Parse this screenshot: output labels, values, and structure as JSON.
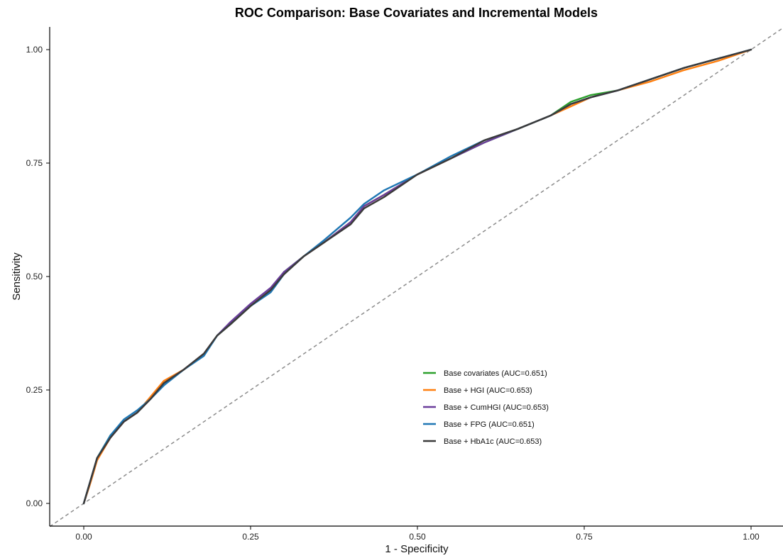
{
  "chart_data": {
    "type": "line",
    "title": "ROC Comparison: Base Covariates and Incremental Models",
    "xlabel": "1 - Specificity",
    "ylabel": "Sensitivity",
    "xlim": [
      0,
      1
    ],
    "ylim": [
      0,
      1
    ],
    "x_ticks": [
      "0.00",
      "0.25",
      "0.50",
      "0.75",
      "1.00"
    ],
    "y_ticks": [
      "0.00",
      "0.25",
      "0.50",
      "0.75",
      "1.00"
    ],
    "grid": false,
    "legend_position": "center-right",
    "reference_line": {
      "style": "dashed",
      "color": "#8c8c8c",
      "x": [
        0,
        1
      ],
      "y": [
        0,
        1
      ]
    },
    "series": [
      {
        "name": "Base covariates (AUC=0.651)",
        "color": "#2ca02c",
        "x": [
          0,
          0.01,
          0.02,
          0.04,
          0.06,
          0.08,
          0.1,
          0.12,
          0.15,
          0.18,
          0.2,
          0.22,
          0.25,
          0.28,
          0.3,
          0.33,
          0.36,
          0.4,
          0.42,
          0.45,
          0.5,
          0.55,
          0.6,
          0.65,
          0.7,
          0.73,
          0.76,
          0.8,
          0.85,
          0.9,
          0.95,
          1.0
        ],
        "y": [
          0,
          0.05,
          0.1,
          0.15,
          0.18,
          0.2,
          0.23,
          0.265,
          0.295,
          0.33,
          0.37,
          0.395,
          0.435,
          0.47,
          0.51,
          0.545,
          0.575,
          0.62,
          0.655,
          0.68,
          0.725,
          0.76,
          0.795,
          0.825,
          0.855,
          0.885,
          0.9,
          0.91,
          0.935,
          0.96,
          0.98,
          1.0
        ]
      },
      {
        "name": "Base + HGI (AUC=0.653)",
        "color": "#ff7f0e",
        "x": [
          0,
          0.01,
          0.02,
          0.04,
          0.06,
          0.08,
          0.1,
          0.12,
          0.15,
          0.18,
          0.2,
          0.22,
          0.25,
          0.28,
          0.3,
          0.33,
          0.36,
          0.4,
          0.42,
          0.45,
          0.5,
          0.55,
          0.6,
          0.65,
          0.7,
          0.73,
          0.76,
          0.8,
          0.85,
          0.9,
          0.95,
          1.0
        ],
        "y": [
          0,
          0.045,
          0.095,
          0.145,
          0.18,
          0.2,
          0.235,
          0.27,
          0.295,
          0.33,
          0.37,
          0.395,
          0.435,
          0.47,
          0.505,
          0.545,
          0.575,
          0.62,
          0.655,
          0.68,
          0.725,
          0.76,
          0.8,
          0.825,
          0.855,
          0.875,
          0.895,
          0.91,
          0.93,
          0.955,
          0.975,
          1.0
        ]
      },
      {
        "name": "Base + CumHGI (AUC=0.653)",
        "color": "#6a3d9a",
        "x": [
          0,
          0.01,
          0.02,
          0.04,
          0.06,
          0.08,
          0.1,
          0.12,
          0.15,
          0.18,
          0.2,
          0.22,
          0.25,
          0.28,
          0.3,
          0.33,
          0.36,
          0.4,
          0.42,
          0.45,
          0.5,
          0.55,
          0.6,
          0.65,
          0.7,
          0.73,
          0.76,
          0.8,
          0.85,
          0.9,
          0.95,
          1.0
        ],
        "y": [
          0,
          0.05,
          0.1,
          0.145,
          0.18,
          0.2,
          0.23,
          0.265,
          0.295,
          0.33,
          0.37,
          0.4,
          0.44,
          0.475,
          0.51,
          0.545,
          0.575,
          0.62,
          0.655,
          0.68,
          0.725,
          0.76,
          0.795,
          0.825,
          0.855,
          0.88,
          0.895,
          0.91,
          0.935,
          0.96,
          0.98,
          1.0
        ]
      },
      {
        "name": "Base + FPG (AUC=0.651)",
        "color": "#1f77b4",
        "x": [
          0,
          0.01,
          0.02,
          0.04,
          0.06,
          0.08,
          0.1,
          0.12,
          0.15,
          0.18,
          0.2,
          0.22,
          0.25,
          0.28,
          0.3,
          0.33,
          0.36,
          0.4,
          0.42,
          0.45,
          0.5,
          0.55,
          0.6,
          0.65,
          0.7,
          0.73,
          0.76,
          0.8,
          0.85,
          0.9,
          0.95,
          1.0
        ],
        "y": [
          0,
          0.05,
          0.1,
          0.15,
          0.185,
          0.205,
          0.23,
          0.26,
          0.295,
          0.325,
          0.37,
          0.395,
          0.435,
          0.465,
          0.505,
          0.545,
          0.58,
          0.63,
          0.66,
          0.69,
          0.725,
          0.765,
          0.8,
          0.825,
          0.855,
          0.88,
          0.895,
          0.91,
          0.935,
          0.96,
          0.98,
          1.0
        ]
      },
      {
        "name": "Base + HbA1c (AUC=0.653)",
        "color": "#3a3a3a",
        "x": [
          0,
          0.01,
          0.02,
          0.04,
          0.06,
          0.08,
          0.1,
          0.12,
          0.15,
          0.18,
          0.2,
          0.22,
          0.25,
          0.28,
          0.3,
          0.33,
          0.36,
          0.4,
          0.42,
          0.45,
          0.5,
          0.55,
          0.6,
          0.65,
          0.7,
          0.73,
          0.76,
          0.8,
          0.85,
          0.9,
          0.95,
          1.0
        ],
        "y": [
          0,
          0.05,
          0.1,
          0.145,
          0.18,
          0.2,
          0.23,
          0.265,
          0.295,
          0.33,
          0.37,
          0.395,
          0.435,
          0.47,
          0.505,
          0.545,
          0.575,
          0.615,
          0.65,
          0.675,
          0.725,
          0.76,
          0.8,
          0.825,
          0.855,
          0.88,
          0.895,
          0.91,
          0.935,
          0.96,
          0.98,
          1.0
        ]
      }
    ]
  }
}
